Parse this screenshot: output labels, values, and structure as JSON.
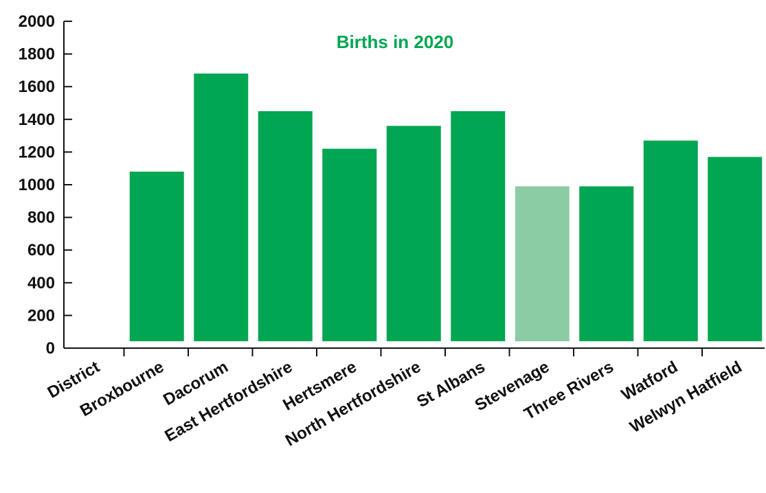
{
  "chart_data": {
    "type": "bar",
    "title": "Births in 2020",
    "xlabel": "",
    "ylabel": "",
    "categories": [
      "District",
      "Broxbourne",
      "Dacorum",
      "East Hertfordshire",
      "Hertsmere",
      "North Hertfordshire",
      "St Albans",
      "Stevenage",
      "Three Rivers",
      "Watford",
      "Welwyn Hatfield"
    ],
    "values": [
      null,
      1080,
      1680,
      1450,
      1220,
      1360,
      1450,
      990,
      990,
      1270,
      1170
    ],
    "highlight": [
      "",
      "",
      "",
      "",
      "",
      "",
      "",
      "Stevenage",
      "",
      "",
      ""
    ],
    "ylim": [
      0,
      2000
    ],
    "yticks": [
      0,
      200,
      400,
      600,
      800,
      1000,
      1200,
      1400,
      1600,
      1800,
      2000
    ],
    "grid": false,
    "colors": {
      "bar": "#00a651",
      "bar_highlight": "#8ccca5",
      "title": "#00a651",
      "axis": "#111111"
    }
  }
}
